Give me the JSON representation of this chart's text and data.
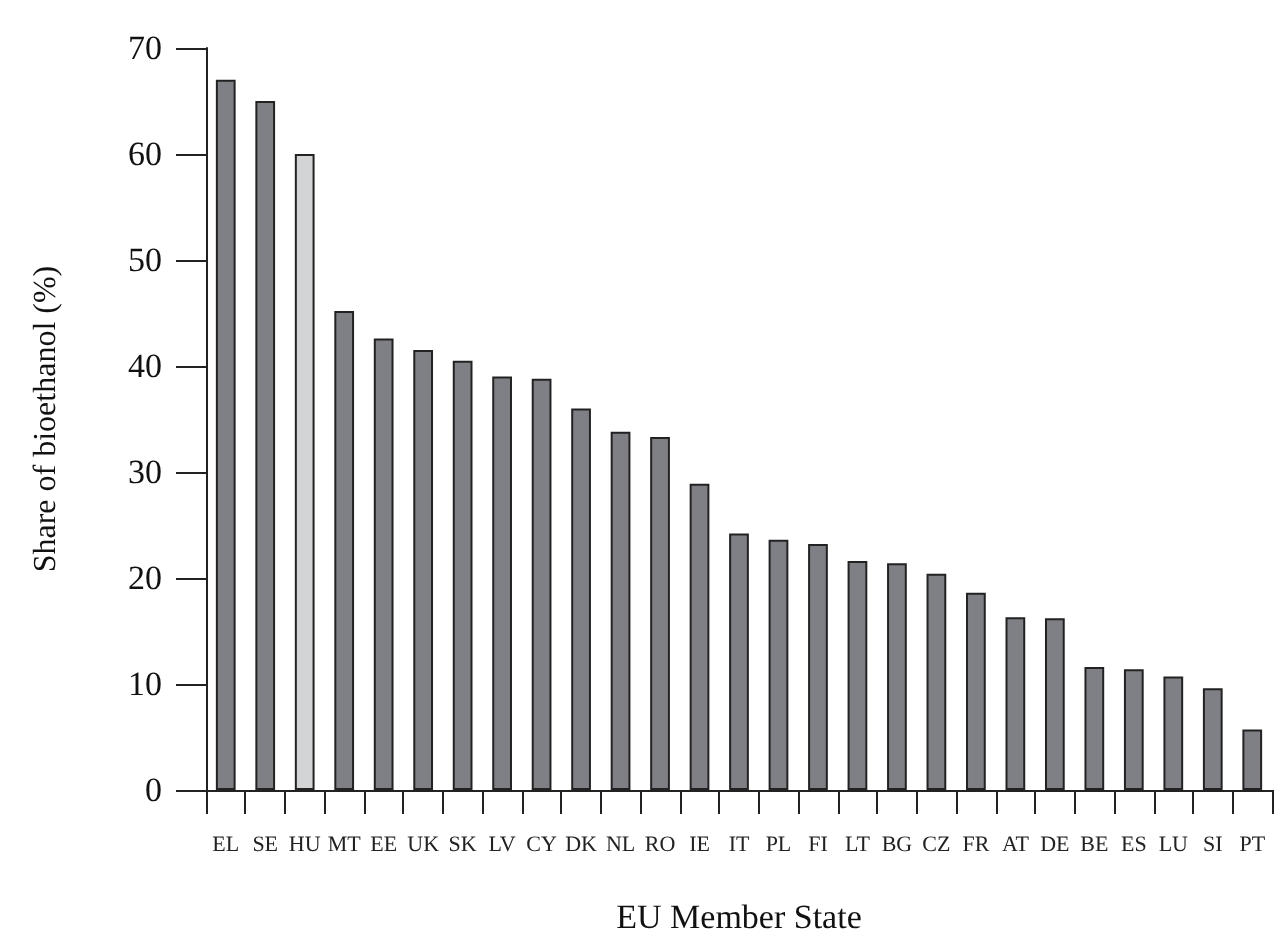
{
  "chart_data": {
    "type": "bar",
    "xlabel": "EU Member State",
    "ylabel": "Share of bioethanol (%)",
    "categories": [
      "EL",
      "SE",
      "HU",
      "MT",
      "EE",
      "UK",
      "SK",
      "LV",
      "CY",
      "DK",
      "NL",
      "RO",
      "IE",
      "IT",
      "PL",
      "FI",
      "LT",
      "BG",
      "CZ",
      "FR",
      "AT",
      "DE",
      "BE",
      "ES",
      "LU",
      "SI",
      "PT"
    ],
    "values": [
      67,
      65,
      60,
      45.2,
      42.6,
      41.5,
      40.5,
      39,
      38.8,
      36,
      33.8,
      33.3,
      28.9,
      24.2,
      23.6,
      23.2,
      21.6,
      21.4,
      20.4,
      18.6,
      16.3,
      16.2,
      11.6,
      11.4,
      10.7,
      9.6,
      5.7
    ],
    "colors": [
      "#7f8085",
      "#7f8085",
      "#d3d4d6",
      "#7f8085",
      "#7f8085",
      "#7f8085",
      "#7f8085",
      "#7f8085",
      "#7f8085",
      "#7f8085",
      "#7f8085",
      "#7f8085",
      "#7f8085",
      "#7f8085",
      "#7f8085",
      "#7f8085",
      "#7f8085",
      "#7f8085",
      "#7f8085",
      "#7f8085",
      "#7f8085",
      "#7f8085",
      "#7f8085",
      "#7f8085",
      "#7f8085",
      "#7f8085",
      "#7f8085"
    ],
    "ylim": [
      0,
      70
    ],
    "yticks": [
      0,
      10,
      20,
      30,
      40,
      50,
      60,
      70
    ],
    "grid": false
  }
}
